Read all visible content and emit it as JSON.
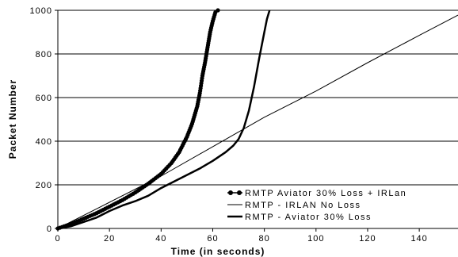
{
  "chart_data": {
    "type": "line",
    "title": "",
    "xlabel": "Time (in seconds)",
    "ylabel": "Packet Number",
    "xlim": [
      0,
      155
    ],
    "ylim": [
      0,
      1000
    ],
    "x_ticks": [
      0,
      20,
      40,
      60,
      80,
      100,
      120,
      140
    ],
    "y_ticks": [
      0,
      200,
      400,
      600,
      800,
      1000
    ],
    "x_tick_labels": [
      "0",
      "20",
      "40",
      "60",
      "80",
      "100",
      "120",
      "140"
    ],
    "y_tick_labels": [
      "0",
      "200",
      "400",
      "600",
      "800",
      "1000"
    ],
    "grid": "horizontal",
    "legend_position": "bottom-right",
    "series": [
      {
        "name": "RMTP Aviator 30% Loss + IRLan",
        "style": "dots",
        "color": "#000000",
        "points": [
          [
            0,
            0
          ],
          [
            5,
            20
          ],
          [
            10,
            45
          ],
          [
            15,
            70
          ],
          [
            20,
            100
          ],
          [
            25,
            130
          ],
          [
            30,
            165
          ],
          [
            35,
            205
          ],
          [
            40,
            250
          ],
          [
            44,
            300
          ],
          [
            47,
            350
          ],
          [
            50,
            420
          ],
          [
            52,
            480
          ],
          [
            54,
            560
          ],
          [
            55,
            620
          ],
          [
            56,
            700
          ],
          [
            57,
            760
          ],
          [
            58,
            830
          ],
          [
            59,
            900
          ],
          [
            60,
            950
          ],
          [
            61,
            990
          ],
          [
            62,
            1000
          ]
        ]
      },
      {
        "name": "RMTP - IRLAN No Loss",
        "style": "thin",
        "color": "#000000",
        "points": [
          [
            0,
            0
          ],
          [
            20,
            120
          ],
          [
            40,
            240
          ],
          [
            60,
            375
          ],
          [
            80,
            510
          ],
          [
            100,
            630
          ],
          [
            120,
            760
          ],
          [
            140,
            885
          ],
          [
            155,
            978
          ]
        ]
      },
      {
        "name": "RMTP - Aviator 30% Loss",
        "style": "thick",
        "color": "#000000",
        "points": [
          [
            0,
            0
          ],
          [
            5,
            10
          ],
          [
            10,
            30
          ],
          [
            15,
            50
          ],
          [
            20,
            80
          ],
          [
            25,
            105
          ],
          [
            30,
            125
          ],
          [
            35,
            150
          ],
          [
            40,
            185
          ],
          [
            45,
            215
          ],
          [
            50,
            245
          ],
          [
            55,
            275
          ],
          [
            60,
            310
          ],
          [
            65,
            350
          ],
          [
            68,
            380
          ],
          [
            70,
            410
          ],
          [
            72,
            460
          ],
          [
            74,
            540
          ],
          [
            76,
            650
          ],
          [
            78,
            780
          ],
          [
            80,
            900
          ],
          [
            81,
            960
          ],
          [
            82,
            1000
          ]
        ]
      }
    ]
  }
}
